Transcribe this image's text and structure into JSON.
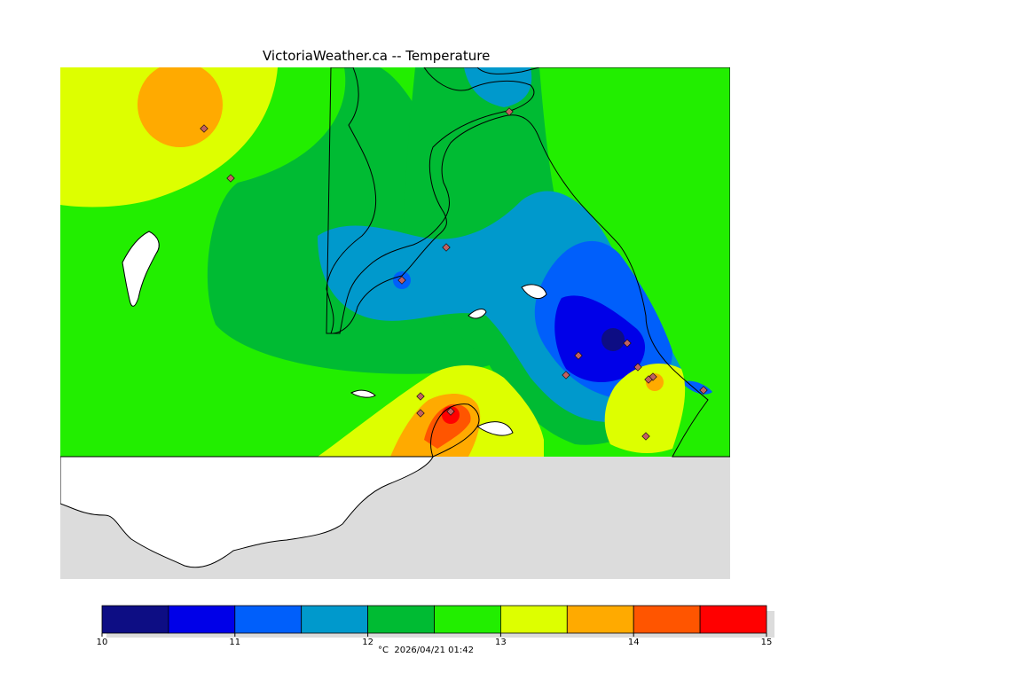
{
  "title": "VictoriaWeather.ca -- Temperature",
  "footer": {
    "unit": "°C",
    "timestamp": "2026/04/21 01:42"
  },
  "colorbar": {
    "min": 10,
    "max": 15,
    "step": 0.5,
    "tick_labels": [
      "10",
      "11",
      "12",
      "13",
      "14",
      "15"
    ],
    "colors": [
      "#0d0d84",
      "#0000e8",
      "#005ffb",
      "#0099cc",
      "#00bb33",
      "#22ee00",
      "#ddff00",
      "#ffaa00",
      "#ff5500",
      "#ff0000"
    ]
  },
  "map": {
    "land_color": "#ffffff",
    "water_color": "#dcdcdc",
    "station_markers": 16
  }
}
